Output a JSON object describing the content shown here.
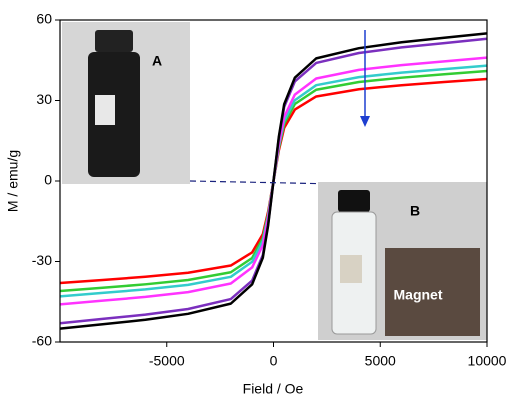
{
  "chart_data": {
    "type": "line",
    "x_label": "Field / Oe",
    "y_label": "M / emu/g",
    "annotations": [
      "A",
      "B",
      "Magnet"
    ],
    "x": [
      -10000,
      -8000,
      -6000,
      -4000,
      -2000,
      -1000,
      -500,
      -250,
      0,
      250,
      500,
      1000,
      2000,
      4000,
      6000,
      8000,
      10000
    ],
    "series": [
      {
        "color": "#ff0000",
        "values": [
          -38,
          -36.9,
          -35.7,
          -34.2,
          -31.5,
          -26.6,
          -19.8,
          -11.4,
          0,
          11.4,
          19.8,
          26.6,
          31.5,
          34.2,
          35.7,
          36.9,
          38
        ]
      },
      {
        "color": "#33cc33",
        "values": [
          -41,
          -39.8,
          -38.5,
          -36.9,
          -34,
          -28.7,
          -21.3,
          -12.3,
          0,
          12.3,
          21.3,
          28.7,
          34,
          36.9,
          38.5,
          39.8,
          41
        ]
      },
      {
        "color": "#33cccc",
        "values": [
          -43,
          -41.7,
          -40.4,
          -38.7,
          -35.7,
          -30.1,
          -22.4,
          -12.9,
          0,
          12.9,
          22.4,
          30.1,
          35.7,
          38.7,
          40.4,
          41.7,
          43
        ]
      },
      {
        "color": "#ff33ff",
        "values": [
          -46,
          -44.6,
          -43.2,
          -41.4,
          -38.2,
          -32.2,
          -23.9,
          -13.8,
          0,
          13.8,
          23.9,
          32.2,
          38.2,
          41.4,
          43.2,
          44.6,
          46
        ]
      },
      {
        "color": "#7b2fbe",
        "values": [
          -53,
          -51.4,
          -49.8,
          -47.7,
          -44,
          -37.1,
          -27.6,
          -15.9,
          0,
          15.9,
          27.6,
          37.1,
          44,
          47.7,
          49.8,
          51.4,
          53
        ]
      },
      {
        "color": "#000000",
        "values": [
          -55,
          -53.4,
          -51.7,
          -49.5,
          -45.7,
          -38.5,
          -28.6,
          -16.5,
          0,
          16.5,
          28.6,
          38.5,
          45.7,
          49.5,
          51.7,
          53.4,
          55
        ]
      }
    ],
    "xlim": [
      -10000,
      10000
    ],
    "xticks": [
      -5000,
      0,
      5000,
      10000
    ],
    "ylim": [
      -60,
      60
    ],
    "yticks": [
      -60,
      -30,
      0,
      30,
      60
    ]
  }
}
